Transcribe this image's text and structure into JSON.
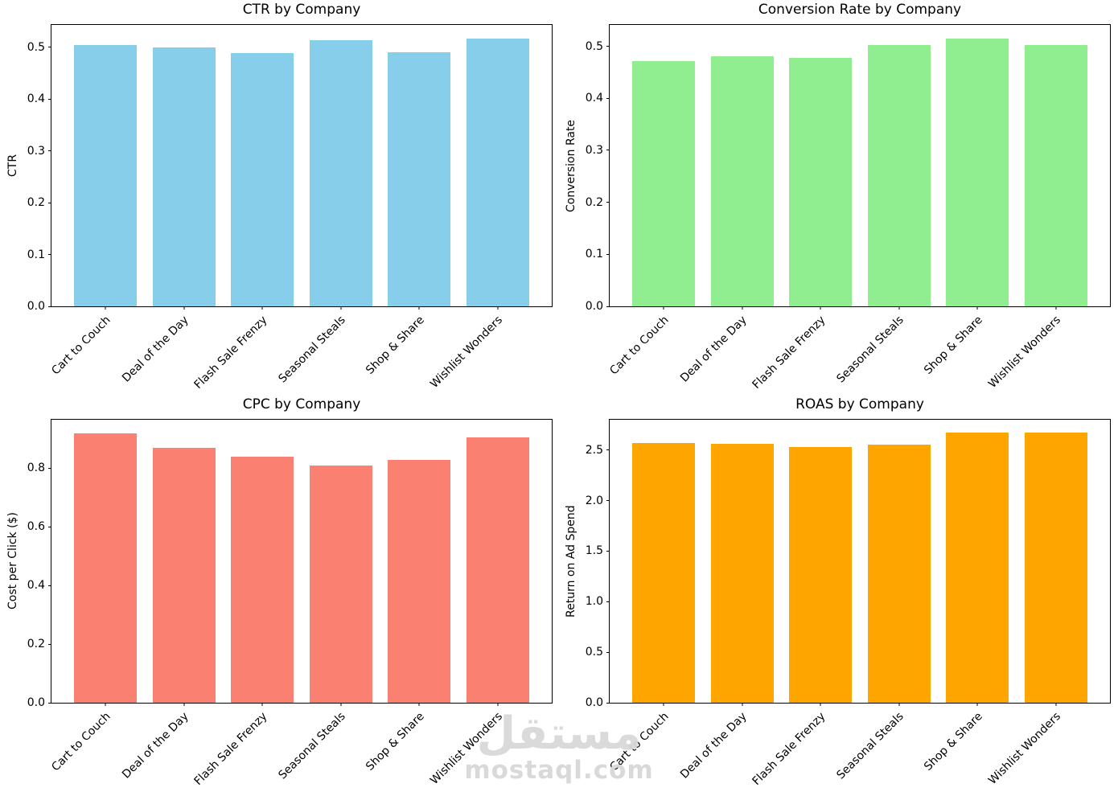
{
  "watermark": {
    "logo_text": "مستقل",
    "domain": "mostaql.com",
    "color": "#d9d9d9"
  },
  "chart_data": [
    {
      "type": "bar",
      "title": "CTR by Company",
      "xlabel": "",
      "ylabel": "CTR",
      "categories": [
        "Cart to Couch",
        "Deal of the Day",
        "Flash Sale Frenzy",
        "Seasonal Steals",
        "Shop & Share",
        "Wishlist Wonders"
      ],
      "values": [
        0.505,
        0.499,
        0.488,
        0.513,
        0.49,
        0.517
      ],
      "bar_color": "#87CEEB",
      "ylim": [
        0,
        0.543
      ],
      "ytick_labels": [
        "0.0",
        "0.1",
        "0.2",
        "0.3",
        "0.4",
        "0.5"
      ],
      "grid": false,
      "legend": null
    },
    {
      "type": "bar",
      "title": "Conversion Rate by Company",
      "xlabel": "",
      "ylabel": "Conversion Rate",
      "categories": [
        "Cart to Couch",
        "Deal of the Day",
        "Flash Sale Frenzy",
        "Seasonal Steals",
        "Shop & Share",
        "Wishlist Wonders"
      ],
      "values": [
        0.472,
        0.48,
        0.477,
        0.502,
        0.515,
        0.502
      ],
      "bar_color": "#90EE90",
      "ylim": [
        0,
        0.541
      ],
      "ytick_labels": [
        "0.0",
        "0.1",
        "0.2",
        "0.3",
        "0.4",
        "0.5"
      ],
      "grid": false,
      "legend": null
    },
    {
      "type": "bar",
      "title": "CPC by Company",
      "xlabel": "",
      "ylabel": "Cost per Click ($)",
      "categories": [
        "Cart to Couch",
        "Deal of the Day",
        "Flash Sale Frenzy",
        "Seasonal Steals",
        "Shop & Share",
        "Wishlist Wonders"
      ],
      "values": [
        0.92,
        0.87,
        0.84,
        0.81,
        0.83,
        0.905
      ],
      "bar_color": "#FA8072",
      "ylim": [
        0,
        0.966
      ],
      "ytick_labels": [
        "0.0",
        "0.2",
        "0.4",
        "0.6",
        "0.8"
      ],
      "grid": false,
      "legend": null
    },
    {
      "type": "bar",
      "title": "ROAS by Company",
      "xlabel": "",
      "ylabel": "Return on Ad Spend",
      "categories": [
        "Cart to Couch",
        "Deal of the Day",
        "Flash Sale Frenzy",
        "Seasonal Steals",
        "Shop & Share",
        "Wishlist Wonders"
      ],
      "values": [
        2.57,
        2.56,
        2.53,
        2.55,
        2.67,
        2.67
      ],
      "bar_color": "#FFA500",
      "ylim": [
        0,
        2.8
      ],
      "ytick_labels": [
        "0.0",
        "0.5",
        "1.0",
        "1.5",
        "2.0",
        "2.5"
      ],
      "grid": false,
      "legend": null
    }
  ]
}
